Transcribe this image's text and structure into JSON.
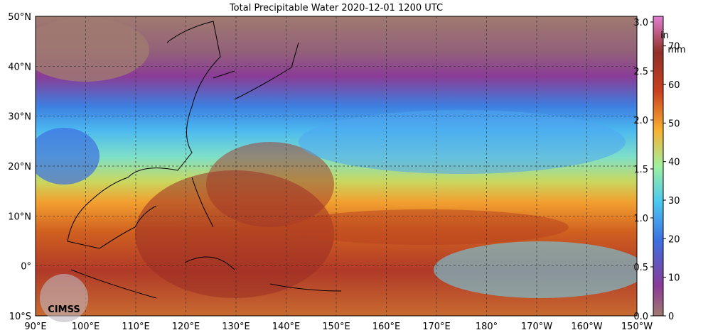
{
  "title": "Total Precipitable Water  2020-12-01 1200 UTC",
  "x_labels": [
    "90°E",
    "100°E",
    "110°E",
    "120°E",
    "130°E",
    "140°E",
    "150°E",
    "160°E",
    "170°E",
    "180°",
    "170°W",
    "160°W",
    "150°W"
  ],
  "y_labels": [
    "50°N",
    "40°N",
    "30°N",
    "20°N",
    "10°N",
    "0°",
    "10°S"
  ],
  "colorbar": {
    "in_label": "in",
    "mm_label": "mm",
    "in_ticks": [
      "0.0",
      "0.5",
      "1.0",
      "1.5",
      "2.0",
      "2.5",
      "3.0"
    ],
    "mm_ticks": [
      "0",
      "10",
      "20",
      "30",
      "40",
      "50",
      "60",
      "70"
    ]
  },
  "logo": "CIMSS"
}
